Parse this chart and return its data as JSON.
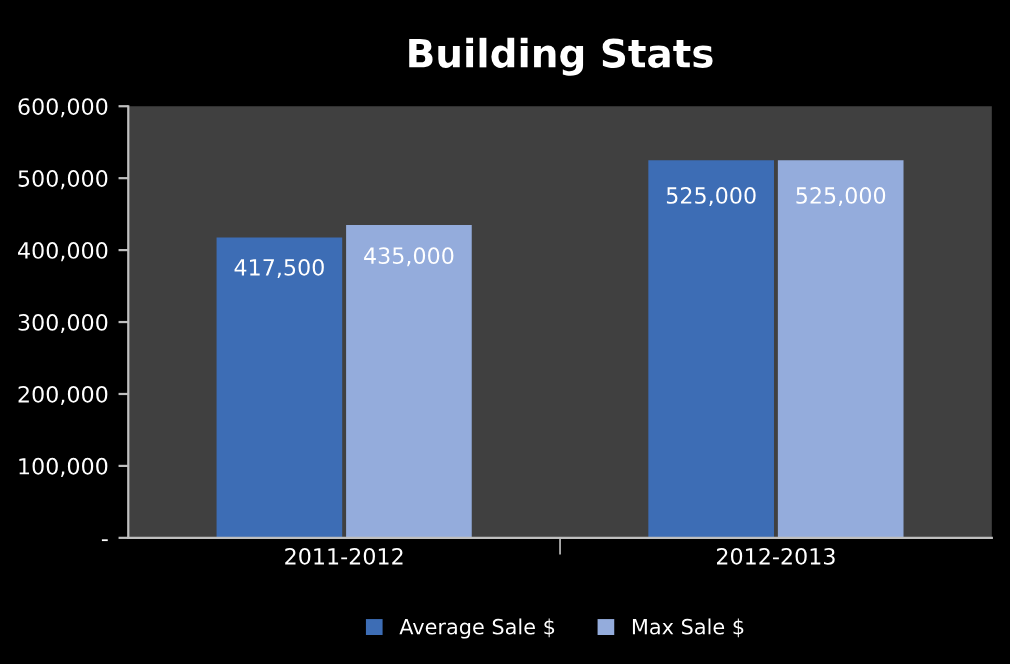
{
  "chart_data": {
    "type": "bar",
    "title": "Building Stats",
    "categories": [
      "2011-2012",
      "2012-2013"
    ],
    "series": [
      {
        "name": "Average Sale $",
        "color": "#3d6db5",
        "values": [
          417500,
          525000
        ],
        "value_labels": [
          "417,500",
          "525,000"
        ]
      },
      {
        "name": "Max Sale $",
        "color": "#94acdc",
        "values": [
          435000,
          525000
        ],
        "value_labels": [
          "435,000",
          "525,000"
        ]
      }
    ],
    "ylim": [
      0,
      600000
    ],
    "yticks": [
      {
        "value": 0,
        "label": "-"
      },
      {
        "value": 100000,
        "label": "100,000"
      },
      {
        "value": 200000,
        "label": "200,000"
      },
      {
        "value": 300000,
        "label": "300,000"
      },
      {
        "value": 400000,
        "label": "400,000"
      },
      {
        "value": 500000,
        "label": "500,000"
      },
      {
        "value": 600000,
        "label": "600,000"
      }
    ],
    "grid": false,
    "legend": "bottom"
  }
}
